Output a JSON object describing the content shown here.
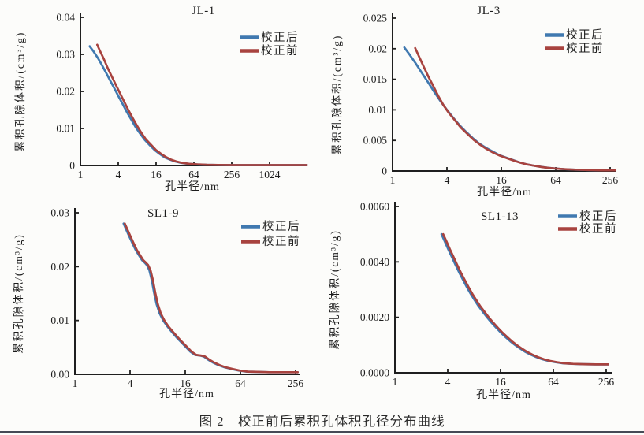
{
  "page": {
    "caption": "图 2　校正前后累积孔体积孔径分布曲线",
    "colors": {
      "after": "#4079B0",
      "before": "#A8433F",
      "axis": "#1f1f1f",
      "rule": "#454a56"
    }
  },
  "chart_data": [
    {
      "type": "line",
      "title": "JL-1",
      "xlabel": "孔半径/nm",
      "ylabel": "累积孔隙体积/(cm³/g)",
      "xscale": "log4",
      "xlim": [
        1,
        4096
      ],
      "ylim": [
        0,
        0.04
      ],
      "xticks": [
        1,
        4,
        16,
        64,
        256,
        1024
      ],
      "xtick_labels": [
        "1",
        "4",
        "16",
        "64",
        "256",
        "1024"
      ],
      "yticks": [
        0,
        0.01,
        0.02,
        0.03,
        0.04
      ],
      "ytick_labels": [
        "0",
        "0.01",
        "0.02",
        "0.03",
        "0.04"
      ],
      "grid": false,
      "legend_position": "top-right",
      "series": [
        {
          "name": "校正后",
          "color": "#4079B0",
          "x": [
            1.4,
            1.6,
            1.9,
            2.2,
            2.6,
            3.0,
            3.5,
            4.0,
            4.7,
            5.5,
            6.5,
            7.6,
            9.0,
            10.7,
            12.8,
            15.3,
            18.3,
            22,
            26.5,
            32,
            40,
            52,
            70,
            100,
            150,
            250,
            500,
            1024,
            2200,
            4000
          ],
          "y": [
            0.0322,
            0.0309,
            0.029,
            0.0271,
            0.0248,
            0.0228,
            0.0207,
            0.0188,
            0.0166,
            0.0144,
            0.0123,
            0.0103,
            0.0085,
            0.0068,
            0.0054,
            0.0041,
            0.0031,
            0.0022,
            0.0016,
            0.0011,
            0.0007,
            0.00045,
            0.0003,
            0.0002,
            0.00015,
            0.0001,
            0.0001,
            0.0001,
            0.0001,
            0.0001
          ]
        },
        {
          "name": "校正前",
          "color": "#A8433F",
          "x": [
            1.85,
            2.05,
            2.35,
            2.7,
            3.1,
            3.6,
            4.15,
            4.85,
            5.7,
            6.75,
            7.9,
            9.35,
            11.1,
            13.3,
            15.9,
            19,
            22.9,
            27.5,
            33.3,
            41.6,
            54,
            72.8,
            104,
            156,
            260,
            520,
            1065,
            2290,
            4000
          ],
          "y": [
            0.0326,
            0.0309,
            0.0288,
            0.0264,
            0.0243,
            0.022,
            0.0199,
            0.0176,
            0.0152,
            0.0129,
            0.0108,
            0.0088,
            0.007,
            0.0056,
            0.0042,
            0.0032,
            0.0023,
            0.0016,
            0.0011,
            0.0007,
            0.00045,
            0.0003,
            0.0002,
            0.00015,
            0.0001,
            0.0001,
            0.0001,
            0.0001,
            0.0001
          ]
        }
      ]
    },
    {
      "type": "line",
      "title": "JL-3",
      "xlabel": "孔半径/nm",
      "ylabel": "累积孔隙体积/(cm³/g)",
      "xscale": "log4",
      "xlim": [
        1,
        290
      ],
      "ylim": [
        0,
        0.025
      ],
      "xticks": [
        1,
        4,
        16,
        64,
        256
      ],
      "xtick_labels": [
        "1",
        "4",
        "16",
        "64",
        "256"
      ],
      "yticks": [
        0,
        0.005,
        0.01,
        0.015,
        0.02,
        0.025
      ],
      "ytick_labels": [
        "0",
        "0.005",
        "0.01",
        "0.015",
        "0.02",
        "0.025"
      ],
      "grid": false,
      "legend_position": "top-right",
      "series": [
        {
          "name": "校正后",
          "color": "#4079B0",
          "x": [
            1.35,
            1.55,
            1.8,
            2.1,
            2.45,
            2.9,
            3.4,
            4.0,
            4.7,
            5.5,
            6.5,
            7.7,
            9.1,
            10.8,
            12.8,
            15.2,
            18,
            21.5,
            25.5,
            30.5,
            36.5,
            44,
            53,
            64,
            80,
            105,
            145,
            200,
            290
          ],
          "y": [
            0.0202,
            0.019,
            0.0176,
            0.0161,
            0.0146,
            0.0129,
            0.0114,
            0.01,
            0.0087,
            0.0075,
            0.0064,
            0.0054,
            0.0045,
            0.0038,
            0.0032,
            0.0026,
            0.0022,
            0.0018,
            0.0014,
            0.0011,
            0.00088,
            0.00068,
            0.00052,
            0.0004,
            0.0003,
            0.00022,
            0.00016,
            0.00012,
            0.0001
          ]
        },
        {
          "name": "校正前",
          "color": "#A8433F",
          "x": [
            1.78,
            1.98,
            2.22,
            2.5,
            2.82,
            3.2,
            3.65,
            4.2,
            4.9,
            5.7,
            6.7,
            7.9,
            9.3,
            11,
            13,
            15.5,
            18.4,
            22,
            26,
            31,
            37.5,
            45,
            54,
            65,
            82,
            107,
            148,
            205,
            290
          ],
          "y": [
            0.0201,
            0.0186,
            0.017,
            0.0154,
            0.0139,
            0.0123,
            0.0108,
            0.0095,
            0.0083,
            0.0071,
            0.0061,
            0.0051,
            0.0043,
            0.0036,
            0.003,
            0.0025,
            0.0021,
            0.0017,
            0.00135,
            0.00107,
            0.00085,
            0.00065,
            0.0005,
            0.00039,
            0.0003,
            0.00022,
            0.00016,
            0.00012,
            0.0001
          ]
        }
      ]
    },
    {
      "type": "line",
      "title": "SL1-9",
      "xlabel": "孔半径/nm",
      "ylabel": "累积孔隙体积/(cm³/g)",
      "xscale": "log4",
      "xlim": [
        1,
        280
      ],
      "ylim": [
        0,
        0.03
      ],
      "xticks": [
        1,
        4,
        16,
        64,
        256
      ],
      "xtick_labels": [
        "1",
        "4",
        "16",
        "64",
        "256"
      ],
      "yticks": [
        0,
        0.01,
        0.02,
        0.03
      ],
      "ytick_labels": [
        "0.00",
        "0.01",
        "0.02",
        "0.03"
      ],
      "grid": false,
      "legend_position": "top-right",
      "series": [
        {
          "name": "校正后",
          "color": "#4079B0",
          "x": [
            3.4,
            3.8,
            4.2,
            4.6,
            5.0,
            5.4,
            5.8,
            6.1,
            6.5,
            6.9,
            7.3,
            7.8,
            8.4,
            9.2,
            10.2,
            11.4,
            12.8,
            14.4,
            16.2,
            18.2,
            20.5,
            23,
            25.5,
            28.5,
            32,
            37,
            43,
            51,
            61,
            75,
            95,
            130,
            180,
            270
          ],
          "y": [
            0.028,
            0.0261,
            0.0245,
            0.0231,
            0.0221,
            0.0212,
            0.0207,
            0.0203,
            0.0193,
            0.0175,
            0.0152,
            0.013,
            0.0113,
            0.01,
            0.0089,
            0.0079,
            0.0069,
            0.006,
            0.0051,
            0.0042,
            0.0036,
            0.0035,
            0.0033,
            0.0027,
            0.0022,
            0.0017,
            0.0013,
            0.001,
            0.0007,
            0.0005,
            0.00045,
            0.0004,
            0.0004,
            0.0004
          ]
        },
        {
          "name": "校正前",
          "color": "#A8433F",
          "x": [
            3.5,
            3.92,
            4.33,
            4.74,
            5.15,
            5.57,
            5.98,
            6.29,
            6.7,
            7.11,
            7.52,
            8.04,
            8.66,
            9.48,
            10.5,
            11.75,
            13.2,
            14.8,
            16.7,
            18.8,
            21.1,
            23.7,
            26.3,
            29.4,
            33,
            38.1,
            44.3,
            52.6,
            62.9,
            77.3,
            98,
            134,
            185,
            270
          ],
          "y": [
            0.028,
            0.0261,
            0.0245,
            0.0231,
            0.0221,
            0.0212,
            0.0207,
            0.0203,
            0.0193,
            0.0175,
            0.0152,
            0.013,
            0.0113,
            0.01,
            0.0089,
            0.0079,
            0.0069,
            0.006,
            0.0051,
            0.0042,
            0.0036,
            0.0035,
            0.0033,
            0.0027,
            0.0022,
            0.0017,
            0.0013,
            0.001,
            0.0007,
            0.0005,
            0.00045,
            0.0004,
            0.0004,
            0.0004
          ]
        }
      ]
    },
    {
      "type": "line",
      "title": "SL1-13",
      "xlabel": "孔半径/nm",
      "ylabel": "累积孔隙体积/(cm³/g)",
      "xscale": "log4",
      "xlim": [
        1,
        280
      ],
      "ylim": [
        0,
        0.006
      ],
      "xticks": [
        1,
        4,
        16,
        64,
        256
      ],
      "xtick_labels": [
        "1",
        "4",
        "16",
        "64",
        "256"
      ],
      "yticks": [
        0,
        0.002,
        0.004,
        0.006
      ],
      "ytick_labels": [
        "0.0000",
        "0.0020",
        "0.0040",
        "0.0060"
      ],
      "grid": false,
      "legend_position": "top-right",
      "series": [
        {
          "name": "校正后",
          "color": "#4079B0",
          "x": [
            3.4,
            3.7,
            4.05,
            4.45,
            4.9,
            5.4,
            6.0,
            6.6,
            7.3,
            8.1,
            9.0,
            10.1,
            11.3,
            12.7,
            14.3,
            16.1,
            18.2,
            20.6,
            23.4,
            26.6,
            30.4,
            35,
            40.5,
            47.5,
            56,
            67,
            82,
            103,
            135,
            190,
            270
          ],
          "y": [
            0.005,
            0.00474,
            0.00446,
            0.00418,
            0.0039,
            0.00362,
            0.00334,
            0.00309,
            0.00285,
            0.00262,
            0.0024,
            0.00219,
            0.00199,
            0.0018,
            0.00162,
            0.00145,
            0.00129,
            0.00114,
            0.001,
            0.00088,
            0.00076,
            0.00066,
            0.00057,
            0.00049,
            0.00043,
            0.00038,
            0.00034,
            0.00032,
            0.00031,
            0.0003,
            0.0003
          ]
        },
        {
          "name": "校正前",
          "color": "#A8433F",
          "x": [
            3.55,
            3.87,
            4.23,
            4.65,
            5.12,
            5.64,
            6.27,
            6.9,
            7.63,
            8.47,
            9.41,
            10.56,
            11.81,
            13.27,
            14.94,
            16.83,
            19.02,
            21.53,
            24.45,
            27.8,
            31.77,
            36.6,
            42.3,
            49.6,
            58.5,
            70,
            85.7,
            107.6,
            141,
            198,
            270
          ],
          "y": [
            0.005,
            0.00474,
            0.00446,
            0.00418,
            0.0039,
            0.00362,
            0.00334,
            0.00309,
            0.00285,
            0.00262,
            0.0024,
            0.00219,
            0.00199,
            0.0018,
            0.00162,
            0.00145,
            0.00129,
            0.00114,
            0.001,
            0.00088,
            0.00076,
            0.00066,
            0.00057,
            0.00049,
            0.00043,
            0.00038,
            0.00034,
            0.00032,
            0.00031,
            0.0003,
            0.0003
          ]
        }
      ]
    }
  ]
}
